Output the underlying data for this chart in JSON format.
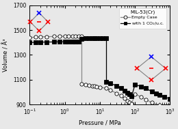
{
  "title": "MIL-53(Cr)",
  "xlabel": "Pressure / MPa",
  "ylabel": "Volume / Å³",
  "ylim": [
    900,
    1700
  ],
  "yticks": [
    900,
    1100,
    1300,
    1500,
    1700
  ],
  "legend_title": "MIL-53(Cr)",
  "bg_color": "#e8e8e8",
  "empty_pressure": [
    0.1,
    0.15,
    0.2,
    0.3,
    0.5,
    0.7,
    1.0,
    1.3,
    1.7,
    2.0,
    2.5,
    3.0,
    3.0,
    4.0,
    5.0,
    6.0,
    7.0,
    8.0,
    10.0,
    15.0,
    20.0,
    30.0,
    40.0,
    50.0,
    60.0,
    70.0,
    80.0,
    100.0,
    150.0,
    200.0,
    300.0,
    500.0,
    700.0,
    1000.0
  ],
  "empty_volume_pre": [
    1440,
    1443,
    1445,
    1447,
    1448,
    1449,
    1450,
    1450,
    1450,
    1450,
    1450,
    1450
  ],
  "empty_pressure_pre": [
    0.1,
    0.15,
    0.2,
    0.3,
    0.5,
    0.7,
    1.0,
    1.3,
    1.7,
    2.0,
    2.5,
    3.0
  ],
  "empty_pressure_post": [
    3.0,
    4.0,
    5.0,
    6.0,
    7.0,
    8.0,
    10.0,
    15.0,
    20.0,
    30.0,
    40.0,
    50.0,
    60.0,
    70.0,
    80.0,
    100.0,
    150.0,
    200.0,
    300.0,
    500.0,
    700.0,
    1000.0
  ],
  "empty_volume_post": [
    1065,
    1060,
    1055,
    1050,
    1048,
    1045,
    1040,
    1030,
    1015,
    990,
    970,
    950,
    930,
    915,
    905,
    985,
    960,
    940,
    915,
    895,
    885,
    875
  ],
  "empty_drop_from": 1450,
  "empty_drop_to": 1065,
  "empty_drop_p": 3.0,
  "co2_pressure_pre": [
    0.1,
    0.15,
    0.2,
    0.3,
    0.5,
    0.7,
    1.0,
    1.3,
    1.7,
    2.0,
    2.5
  ],
  "co2_volume_pre": [
    1400,
    1400,
    1402,
    1403,
    1404,
    1405,
    1405,
    1405,
    1405,
    1405,
    1405
  ],
  "co2_rise_pressures": [
    2.5,
    3.0
  ],
  "co2_rise_volumes": [
    1405,
    1430
  ],
  "co2_pressure_mid": [
    3.0,
    4.0,
    5.0,
    6.0,
    7.0,
    8.0,
    10.0,
    12.0,
    15.0
  ],
  "co2_volume_mid": [
    1430,
    1432,
    1433,
    1435,
    1435,
    1435,
    1435,
    1435,
    1435
  ],
  "co2_drop_from": 1435,
  "co2_drop_to": 1080,
  "co2_drop_p": 15.0,
  "co2_pressure_post": [
    15.0,
    20.0,
    30.0,
    40.0,
    50.0,
    60.0,
    70.0,
    80.0,
    100.0,
    150.0,
    200.0,
    300.0,
    400.0,
    500.0,
    700.0,
    1000.0
  ],
  "co2_volume_post": [
    1080,
    1070,
    1050,
    1030,
    1010,
    995,
    980,
    965,
    1060,
    1045,
    1030,
    1005,
    990,
    975,
    960,
    945
  ]
}
